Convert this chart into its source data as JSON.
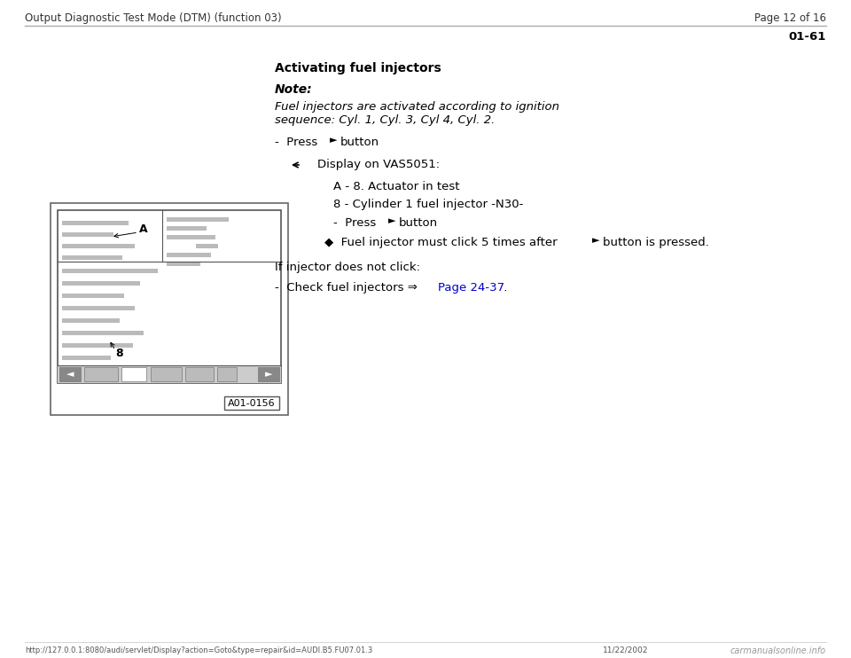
{
  "bg_color": "#ffffff",
  "header_left": "Output Diagnostic Test Mode (DTM) (function 03)",
  "header_right": "Page 12 of 16",
  "page_id": "01-61",
  "section_title": "Activating fuel injectors",
  "note_label": "Note:",
  "note_text1": "Fuel injectors are activated according to ignition",
  "note_text2": "sequence: Cyl. 1, Cyl. 3, Cyl 4, Cyl. 2.",
  "display_label": "Display on VAS5051:",
  "item_a": "A - 8. Actuator in test",
  "item_8": "8 - Cylinder 1 fuel injector -N30-",
  "if_text": "If injector does not click:",
  "link_color": "#0000cc",
  "footer_url": "http://127.0.0.1:8080/audi/servlet/Display?action=Goto&type=repair&id=AUDI.B5.FU07.01.3",
  "footer_date": "11/22/2002",
  "footer_logo": "carmanualsonline.info",
  "header_line_color": "#aaaaaa",
  "diagram_image_label": "A01-0156",
  "text_color": "#000000"
}
